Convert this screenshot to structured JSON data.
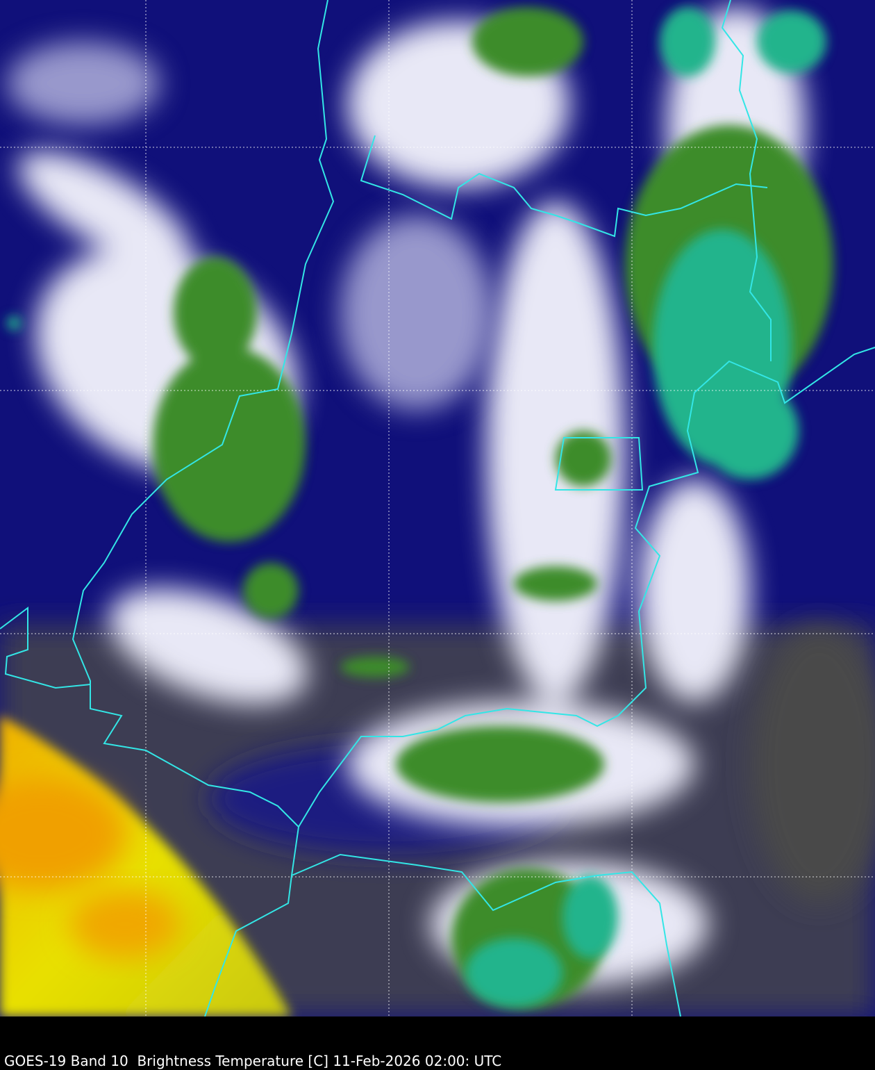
{
  "caption": "GOES-19 Band 10  Brightness Temperature [C] 11-Feb-2026 02:00: UTC",
  "imagery": {
    "satellite": "GOES-19",
    "band": "10",
    "variable": "Brightness Temperature [C]",
    "datetime": "11-Feb-2026 02:00: UTC",
    "grid_lines": "dotted white",
    "border_color": "#33e6e6",
    "palette": {
      "warm": "#f0a000",
      "yellow": "#e8e800",
      "clear_dark": "#44444a",
      "navy": "#000080",
      "white": "#ffffff",
      "green": "#3c8c2c",
      "teal": "#20b48c"
    }
  }
}
